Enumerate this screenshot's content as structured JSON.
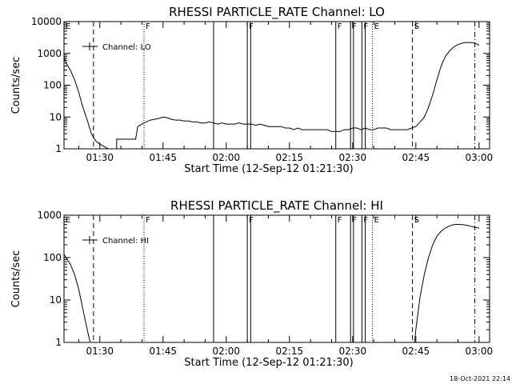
{
  "chart_data": [
    {
      "type": "line",
      "title": "RHESSI PARTICLE_RATE Channel: LO",
      "xlabel": "Start Time (12-Sep-12 01:21:30)",
      "ylabel": "Counts/sec",
      "y_scale": "log",
      "ylim": [
        1,
        10000
      ],
      "xlim_min": [
        21.5,
        98.5
      ],
      "x_ticks": [
        {
          "v": 30,
          "label": "01:30"
        },
        {
          "v": 45,
          "label": "01:45"
        },
        {
          "v": 60,
          "label": "02:00"
        },
        {
          "v": 75,
          "label": "02:15"
        },
        {
          "v": 90,
          "label": "02:30"
        },
        {
          "v": 105,
          "label": "02:45"
        },
        {
          "v": 120,
          "label": "03:00"
        }
      ],
      "y_ticks": [
        {
          "v": 1,
          "label": "1"
        },
        {
          "v": 10,
          "label": "10"
        },
        {
          "v": 100,
          "label": "100"
        },
        {
          "v": 1000,
          "label": "1000"
        },
        {
          "v": 10000,
          "label": "10000"
        }
      ],
      "legend": {
        "label": "Channel: LO",
        "position": "top-left"
      },
      "series": [
        {
          "segments": [
            [
              [
                21.5,
                800
              ],
              [
                22,
                500
              ],
              [
                23,
                300
              ],
              [
                24,
                150
              ],
              [
                25,
                60
              ],
              [
                26,
                20
              ],
              [
                27,
                8
              ],
              [
                28,
                3
              ],
              [
                29,
                1.8
              ],
              [
                30,
                1.4
              ],
              [
                31,
                1.2
              ],
              [
                32,
                1.0
              ]
            ],
            [
              [
                34,
                1
              ],
              [
                34,
                2
              ],
              [
                37,
                2
              ],
              [
                38.5,
                2
              ],
              [
                39,
                5
              ]
            ],
            [
              [
                39,
                5
              ],
              [
                40,
                6
              ],
              [
                41,
                7
              ],
              [
                42,
                8
              ],
              [
                43,
                8.5
              ],
              [
                44,
                9
              ],
              [
                45,
                10
              ],
              [
                46,
                9.5
              ],
              [
                47,
                8.5
              ],
              [
                48,
                8
              ],
              [
                49,
                8
              ],
              [
                50,
                7.5
              ],
              [
                51,
                7.5
              ],
              [
                52,
                7
              ],
              [
                53,
                7
              ],
              [
                54,
                6.5
              ],
              [
                55,
                6.5
              ],
              [
                56,
                7
              ],
              [
                57,
                6.5
              ],
              [
                58,
                6
              ],
              [
                59,
                6.5
              ],
              [
                60,
                6
              ],
              [
                61,
                6
              ],
              [
                62,
                6
              ],
              [
                63,
                6.5
              ],
              [
                64,
                6
              ],
              [
                65,
                6
              ],
              [
                66,
                6
              ],
              [
                67,
                5.5
              ],
              [
                68,
                6
              ],
              [
                69,
                5.5
              ],
              [
                70,
                5
              ],
              [
                71,
                5
              ],
              [
                72,
                5
              ],
              [
                73,
                5
              ],
              [
                74,
                4.5
              ],
              [
                75,
                4.5
              ],
              [
                76,
                4
              ],
              [
                77,
                4.5
              ],
              [
                78,
                4
              ],
              [
                79,
                4
              ],
              [
                80,
                4
              ],
              [
                81,
                4
              ],
              [
                82,
                4
              ],
              [
                83,
                4
              ],
              [
                84,
                4
              ],
              [
                85,
                3.5
              ],
              [
                86,
                3.5
              ],
              [
                87,
                3.5
              ],
              [
                88,
                4
              ],
              [
                89,
                4
              ],
              [
                90,
                4.5
              ],
              [
                91,
                4.5
              ],
              [
                92,
                4
              ],
              [
                93,
                4.5
              ],
              [
                94,
                4
              ],
              [
                95,
                4
              ],
              [
                96,
                4.5
              ],
              [
                97,
                4.5
              ],
              [
                98,
                4.5
              ],
              [
                99,
                4
              ],
              [
                100,
                4
              ],
              [
                101,
                4
              ],
              [
                102,
                4
              ],
              [
                103,
                4
              ],
              [
                104,
                4.5
              ],
              [
                105,
                5
              ],
              [
                106,
                7
              ],
              [
                107,
                10
              ],
              [
                108,
                20
              ],
              [
                109,
                50
              ],
              [
                110,
                150
              ],
              [
                111,
                400
              ],
              [
                112,
                800
              ],
              [
                113,
                1200
              ],
              [
                114,
                1600
              ],
              [
                115,
                1900
              ],
              [
                116,
                2100
              ],
              [
                117,
                2200
              ],
              [
                118,
                2200
              ],
              [
                119,
                2100
              ],
              [
                120,
                1800
              ]
            ]
          ]
        }
      ],
      "events": [
        {
          "x": 21.5,
          "label": "E",
          "style": "dot"
        },
        {
          "x": 28.5,
          "label": "",
          "style": "dash"
        },
        {
          "x": 40.5,
          "label": "F",
          "style": "dot"
        },
        {
          "x": 57.0,
          "label": "",
          "style": "solid"
        },
        {
          "x": 65.0,
          "label": "F",
          "style": "solid"
        },
        {
          "x": 65.8,
          "label": "",
          "style": "solid"
        },
        {
          "x": 86.0,
          "label": "F",
          "style": "solid"
        },
        {
          "x": 89.5,
          "label": "F",
          "style": "solid"
        },
        {
          "x": 90.2,
          "label": "",
          "style": "solid"
        },
        {
          "x": 92.2,
          "label": "F",
          "style": "solid"
        },
        {
          "x": 93.0,
          "label": "",
          "style": "solid"
        },
        {
          "x": 94.7,
          "label": "E",
          "style": "dot"
        },
        {
          "x": 104.2,
          "label": "S",
          "style": "dash"
        },
        {
          "x": 119.0,
          "label": "",
          "style": "dashdot"
        }
      ]
    },
    {
      "type": "line",
      "title": "RHESSI PARTICLE_RATE Channel: HI",
      "xlabel": "Start Time (12-Sep-12 01:21:30)",
      "ylabel": "Counts/sec",
      "y_scale": "log",
      "ylim": [
        1,
        1000
      ],
      "xlim_min": [
        21.5,
        98.5
      ],
      "x_ticks": [
        {
          "v": 30,
          "label": "01:30"
        },
        {
          "v": 45,
          "label": "01:45"
        },
        {
          "v": 60,
          "label": "02:00"
        },
        {
          "v": 75,
          "label": "02:15"
        },
        {
          "v": 90,
          "label": "02:30"
        },
        {
          "v": 105,
          "label": "02:45"
        },
        {
          "v": 120,
          "label": "03:00"
        }
      ],
      "y_ticks": [
        {
          "v": 1,
          "label": "1"
        },
        {
          "v": 10,
          "label": "10"
        },
        {
          "v": 100,
          "label": "100"
        },
        {
          "v": 1000,
          "label": "1000"
        }
      ],
      "legend": {
        "label": "Channel: HI",
        "position": "top-left"
      },
      "series": [
        {
          "segments": [
            [
              [
                21.5,
                120
              ],
              [
                22,
                100
              ],
              [
                23,
                70
              ],
              [
                24,
                40
              ],
              [
                25,
                18
              ],
              [
                26,
                6
              ],
              [
                27,
                2
              ],
              [
                27.7,
                1
              ]
            ],
            [
              [
                104.7,
                1
              ],
              [
                105,
                2
              ],
              [
                105.5,
                5
              ],
              [
                106,
                12
              ],
              [
                107,
                40
              ],
              [
                108,
                100
              ],
              [
                109,
                200
              ],
              [
                110,
                320
              ],
              [
                111,
                420
              ],
              [
                112,
                500
              ],
              [
                113,
                560
              ],
              [
                114,
                600
              ],
              [
                115,
                610
              ],
              [
                116,
                600
              ],
              [
                117,
                580
              ],
              [
                118,
                550
              ],
              [
                119,
                520
              ],
              [
                120,
                500
              ]
            ]
          ]
        }
      ],
      "events": [
        {
          "x": 21.5,
          "label": "E",
          "style": "dot"
        },
        {
          "x": 28.5,
          "label": "",
          "style": "dash"
        },
        {
          "x": 40.5,
          "label": "F",
          "style": "dot"
        },
        {
          "x": 57.0,
          "label": "",
          "style": "solid"
        },
        {
          "x": 65.0,
          "label": "F",
          "style": "solid"
        },
        {
          "x": 65.8,
          "label": "",
          "style": "solid"
        },
        {
          "x": 86.0,
          "label": "F",
          "style": "solid"
        },
        {
          "x": 89.5,
          "label": "F",
          "style": "solid"
        },
        {
          "x": 90.2,
          "label": "",
          "style": "solid"
        },
        {
          "x": 92.2,
          "label": "F",
          "style": "solid"
        },
        {
          "x": 93.0,
          "label": "",
          "style": "solid"
        },
        {
          "x": 94.7,
          "label": "E",
          "style": "dot"
        },
        {
          "x": 104.2,
          "label": "S",
          "style": "dash"
        },
        {
          "x": 119.0,
          "label": "",
          "style": "dashdot"
        }
      ]
    }
  ],
  "footer": {
    "timestamp": "18-Oct-2021 22:14"
  }
}
